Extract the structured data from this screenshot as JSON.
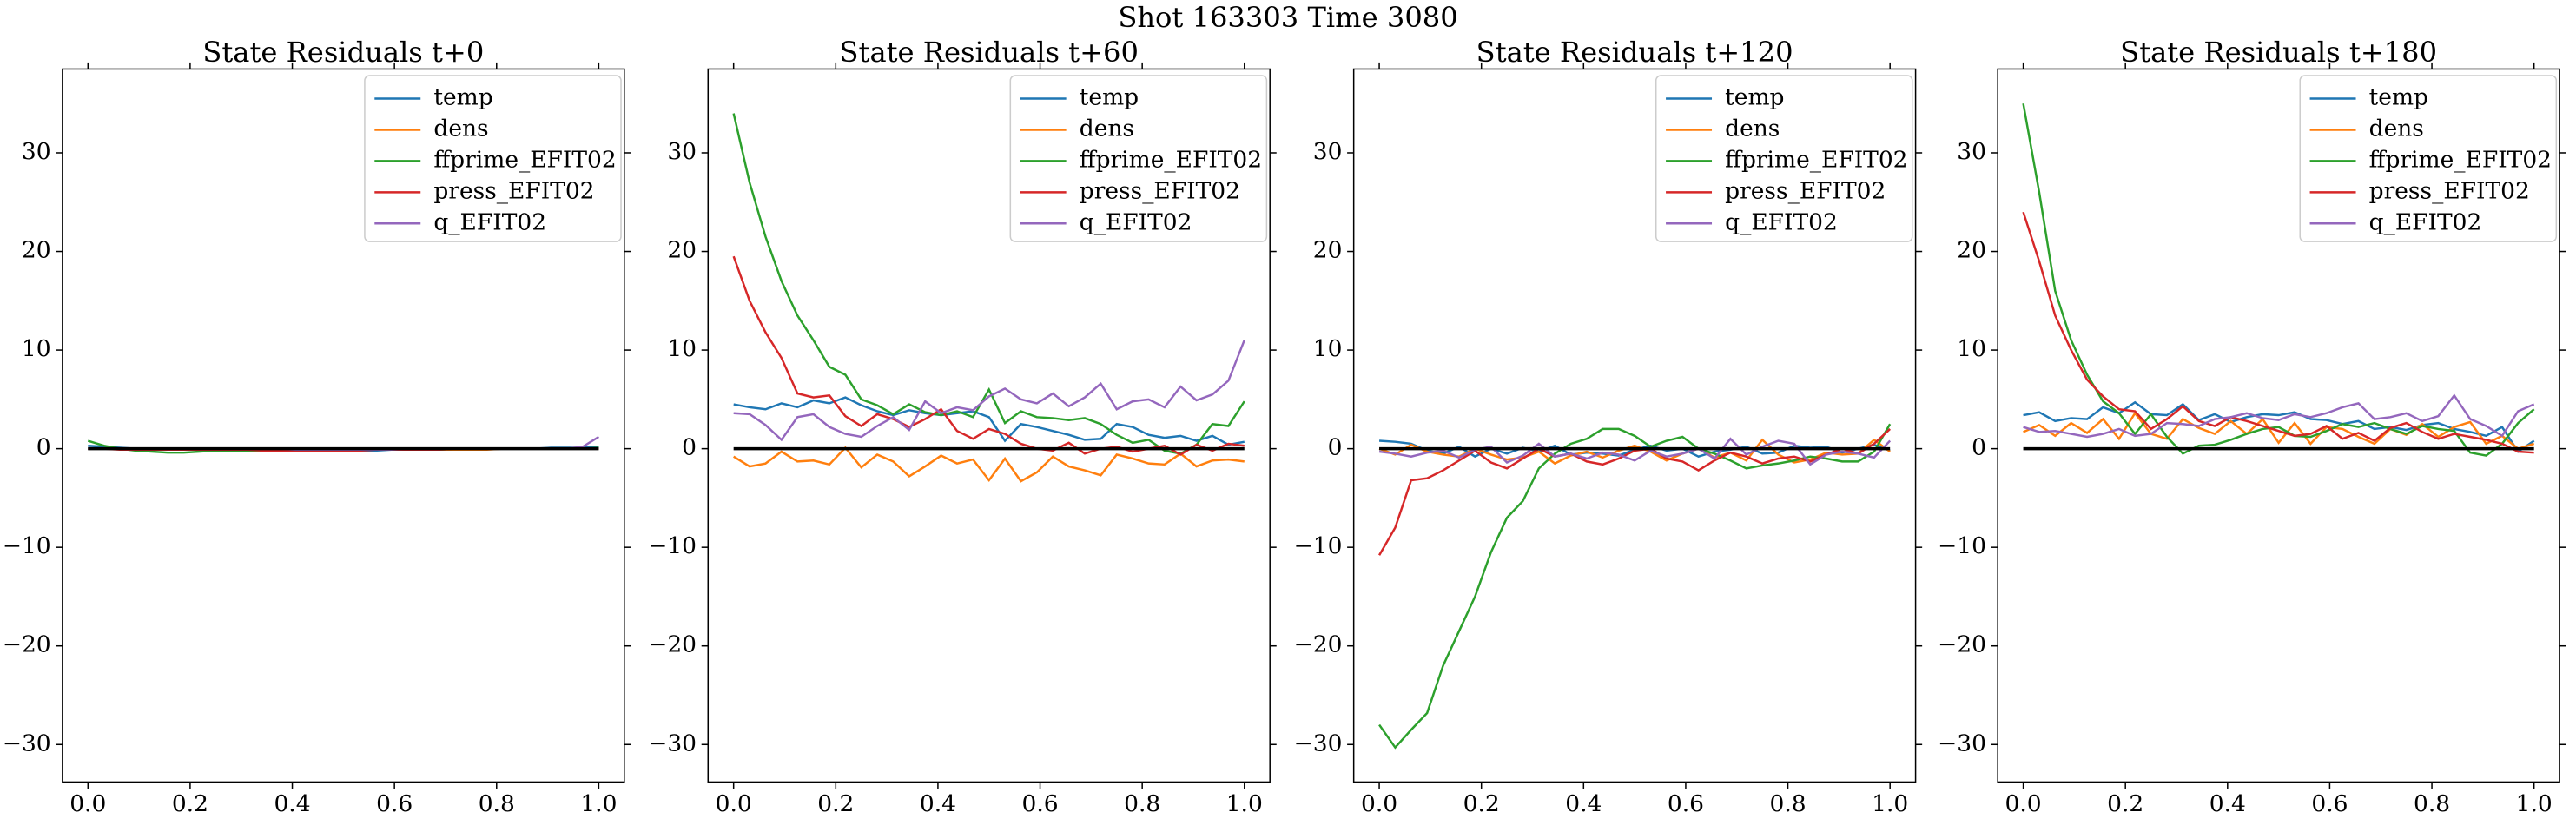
{
  "title": "Shot 163303   Time 3080",
  "chart_data": [
    {
      "type": "line",
      "title": "State Residuals t+0",
      "x": [
        0,
        0.03125,
        0.0625,
        0.09375,
        0.125,
        0.15625,
        0.1875,
        0.21875,
        0.25,
        0.28125,
        0.3125,
        0.34375,
        0.375,
        0.40625,
        0.4375,
        0.46875,
        0.5,
        0.53125,
        0.5625,
        0.59375,
        0.625,
        0.65625,
        0.6875,
        0.71875,
        0.75,
        0.78125,
        0.8125,
        0.84375,
        0.875,
        0.90625,
        0.9375,
        0.96875,
        1
      ],
      "series": [
        {
          "name": "temp",
          "color": "#1f77b4",
          "values": [
            0.3,
            0.2,
            0.1,
            0,
            0,
            0,
            -0.1,
            -0.1,
            -0.1,
            -0.1,
            -0.1,
            -0.1,
            -0.2,
            -0.2,
            -0.2,
            -0.2,
            -0.2,
            -0.2,
            -0.2,
            -0.1,
            -0.1,
            -0.1,
            -0.1,
            0,
            0,
            0,
            0,
            0,
            0,
            0.1,
            0.1,
            0.1,
            0.2
          ]
        },
        {
          "name": "dens",
          "color": "#ff7f0e",
          "values": [
            0,
            0,
            0,
            -0.1,
            -0.1,
            -0.1,
            -0.1,
            -0.1,
            -0.1,
            -0.1,
            -0.1,
            -0.1,
            -0.1,
            -0.1,
            -0.1,
            -0.1,
            -0.1,
            -0.1,
            -0.1,
            -0.1,
            -0.1,
            -0.1,
            -0.1,
            -0.1,
            -0.1,
            -0.1,
            0,
            0,
            0,
            0,
            0,
            0,
            0
          ]
        },
        {
          "name": "ffprime_EFIT02",
          "color": "#2ca02c",
          "values": [
            0.8,
            0.3,
            0,
            -0.2,
            -0.3,
            -0.4,
            -0.4,
            -0.3,
            -0.2,
            -0.2,
            -0.2,
            -0.2,
            -0.2,
            -0.2,
            -0.2,
            -0.2,
            -0.2,
            -0.1,
            -0.1,
            -0.1,
            -0.1,
            -0.1,
            -0.1,
            0,
            0,
            0,
            0,
            0,
            0,
            0,
            0,
            0,
            0.1
          ]
        },
        {
          "name": "press_EFIT02",
          "color": "#d62728",
          "values": [
            0,
            0,
            -0.1,
            -0.1,
            -0.1,
            -0.1,
            -0.1,
            -0.1,
            -0.1,
            -0.1,
            -0.1,
            -0.2,
            -0.2,
            -0.2,
            -0.2,
            -0.2,
            -0.2,
            -0.2,
            -0.1,
            -0.1,
            -0.1,
            -0.1,
            -0.1,
            0,
            0,
            0,
            0,
            0,
            0,
            0,
            0,
            0,
            0
          ]
        },
        {
          "name": "q_EFIT02",
          "color": "#9467bd",
          "values": [
            0,
            0,
            0,
            0,
            0,
            0,
            0,
            0,
            0,
            0,
            0,
            0,
            0,
            -0.1,
            -0.1,
            -0.1,
            -0.1,
            -0.1,
            -0.1,
            -0.1,
            0,
            0,
            0,
            0,
            0,
            0,
            0,
            0,
            0,
            0,
            0,
            0.2,
            1.2
          ]
        }
      ],
      "hline": 0,
      "hline_color": "#000000",
      "xlim": [
        -0.05,
        1.05
      ],
      "ylim": [
        -33.8,
        38.5
      ],
      "xticks": [
        {
          "value": 0,
          "label": "0.0"
        },
        {
          "value": 0.2,
          "label": "0.2"
        },
        {
          "value": 0.4,
          "label": "0.4"
        },
        {
          "value": 0.6,
          "label": "0.6"
        },
        {
          "value": 0.8,
          "label": "0.8"
        },
        {
          "value": 1,
          "label": "1.0"
        }
      ],
      "yticks": [
        {
          "value": -30,
          "label": "−30"
        },
        {
          "value": -20,
          "label": "−20"
        },
        {
          "value": -10,
          "label": "−10"
        },
        0,
        10,
        20,
        30
      ],
      "legend": "upper right"
    },
    {
      "type": "line",
      "title": "State Residuals t+60",
      "x": [
        0,
        0.03125,
        0.0625,
        0.09375,
        0.125,
        0.15625,
        0.1875,
        0.21875,
        0.25,
        0.28125,
        0.3125,
        0.34375,
        0.375,
        0.40625,
        0.4375,
        0.46875,
        0.5,
        0.53125,
        0.5625,
        0.59375,
        0.625,
        0.65625,
        0.6875,
        0.71875,
        0.75,
        0.78125,
        0.8125,
        0.84375,
        0.875,
        0.90625,
        0.9375,
        0.96875,
        1
      ],
      "series": [
        {
          "name": "temp",
          "color": "#1f77b4",
          "values": [
            4.5,
            4.2,
            4.0,
            4.6,
            4.2,
            4.9,
            4.6,
            5.2,
            4.4,
            3.8,
            3.4,
            3.9,
            3.6,
            3.4,
            3.6,
            3.8,
            3.2,
            0.8,
            2.5,
            2.2,
            1.8,
            1.4,
            0.9,
            1.0,
            2.5,
            2.2,
            1.4,
            1.1,
            1.3,
            0.8,
            1.3,
            0.4,
            0.7
          ]
        },
        {
          "name": "dens",
          "color": "#ff7f0e",
          "values": [
            -0.8,
            -1.8,
            -1.5,
            -0.3,
            -1.3,
            -1.2,
            -1.6,
            0.1,
            -1.9,
            -0.6,
            -1.3,
            -2.8,
            -1.8,
            -0.7,
            -1.5,
            -1.1,
            -3.2,
            -1.0,
            -3.3,
            -2.4,
            -0.8,
            -1.8,
            -2.2,
            -2.7,
            -0.6,
            -1.0,
            -1.5,
            -1.6,
            -0.5,
            -1.8,
            -1.2,
            -1.1,
            -1.3
          ]
        },
        {
          "name": "ffprime_EFIT02",
          "color": "#2ca02c",
          "values": [
            34,
            27,
            21.5,
            17,
            13.5,
            11,
            8.3,
            7.5,
            5,
            4.4,
            3.5,
            4.5,
            3.7,
            3.4,
            3.8,
            3.2,
            6.0,
            2.6,
            3.8,
            3.2,
            3.1,
            2.9,
            3.1,
            2.5,
            1.4,
            0.6,
            0.9,
            -0.2,
            -0.5,
            0.4,
            2.5,
            2.3,
            4.8
          ]
        },
        {
          "name": "press_EFIT02",
          "color": "#d62728",
          "values": [
            19.5,
            15,
            11.8,
            9.2,
            5.6,
            5.2,
            5.4,
            3.3,
            2.3,
            3.5,
            3.0,
            2.2,
            3.0,
            4.0,
            1.8,
            1.0,
            2.0,
            1.5,
            0.5,
            0.0,
            -0.2,
            0.6,
            -0.5,
            0.0,
            0.2,
            -0.3,
            0.0,
            0.3,
            -0.6,
            0.4,
            -0.2,
            0.5,
            0.3
          ]
        },
        {
          "name": "q_EFIT02",
          "color": "#9467bd",
          "values": [
            3.6,
            3.5,
            2.4,
            0.9,
            3.2,
            3.5,
            2.2,
            1.5,
            1.2,
            2.3,
            3.2,
            1.9,
            4.8,
            3.6,
            4.2,
            3.9,
            5.3,
            6.1,
            5.0,
            4.6,
            5.6,
            4.3,
            5.2,
            6.6,
            4.0,
            4.8,
            5.0,
            4.2,
            6.3,
            4.9,
            5.5,
            6.9,
            11.0
          ]
        }
      ],
      "hline": 0,
      "hline_color": "#000000",
      "xlim": [
        -0.05,
        1.05
      ],
      "ylim": [
        -33.8,
        38.5
      ],
      "xticks": [
        {
          "value": 0,
          "label": "0.0"
        },
        {
          "value": 0.2,
          "label": "0.2"
        },
        {
          "value": 0.4,
          "label": "0.4"
        },
        {
          "value": 0.6,
          "label": "0.6"
        },
        {
          "value": 0.8,
          "label": "0.8"
        },
        {
          "value": 1,
          "label": "1.0"
        }
      ],
      "yticks": [
        {
          "value": -30,
          "label": "−30"
        },
        {
          "value": -20,
          "label": "−20"
        },
        {
          "value": -10,
          "label": "−10"
        },
        0,
        10,
        20,
        30
      ],
      "legend": "upper right"
    },
    {
      "type": "line",
      "title": "State Residuals t+120",
      "x": [
        0,
        0.03125,
        0.0625,
        0.09375,
        0.125,
        0.15625,
        0.1875,
        0.21875,
        0.25,
        0.28125,
        0.3125,
        0.34375,
        0.375,
        0.40625,
        0.4375,
        0.46875,
        0.5,
        0.53125,
        0.5625,
        0.59375,
        0.625,
        0.65625,
        0.6875,
        0.71875,
        0.75,
        0.78125,
        0.8125,
        0.84375,
        0.875,
        0.90625,
        0.9375,
        0.96875,
        1
      ],
      "series": [
        {
          "name": "temp",
          "color": "#1f77b4",
          "values": [
            0.8,
            0.7,
            0.5,
            -0.2,
            -0.5,
            0.2,
            -0.8,
            0.0,
            -0.5,
            0.1,
            -0.3,
            0.3,
            -0.6,
            -0.4,
            -0.5,
            -0.7,
            -0.1,
            0.3,
            -0.2,
            0.0,
            -0.8,
            -0.3,
            -0.1,
            0.2,
            -0.5,
            -0.4,
            0.3,
            0.1,
            0.2,
            -0.4,
            0.0,
            0.4,
            -0.2
          ]
        },
        {
          "name": "dens",
          "color": "#ff7f0e",
          "values": [
            0.0,
            -0.6,
            0.4,
            -0.3,
            -0.6,
            -0.8,
            0.0,
            -0.6,
            -1.1,
            -0.9,
            -0.3,
            -1.5,
            -0.7,
            -0.3,
            -0.9,
            -0.2,
            0.3,
            -0.3,
            -1.2,
            -0.5,
            0.0,
            -0.9,
            -0.4,
            -1.2,
            0.9,
            -0.6,
            -1.4,
            -1.1,
            -0.4,
            -0.6,
            -0.5,
            0.9,
            -0.3
          ]
        },
        {
          "name": "ffprime_EFIT02",
          "color": "#2ca02c",
          "values": [
            -28,
            -30.3,
            -28.5,
            -26.8,
            -22,
            -18.5,
            -15,
            -10.5,
            -7,
            -5.3,
            -2,
            -0.5,
            0.5,
            1.0,
            2.0,
            2.0,
            1.3,
            0.2,
            0.8,
            1.2,
            0.0,
            -0.5,
            -1.2,
            -2.0,
            -1.7,
            -1.5,
            -1.2,
            -0.8,
            -1.0,
            -1.3,
            -1.3,
            -0.3,
            2.5
          ]
        },
        {
          "name": "press_EFIT02",
          "color": "#d62728",
          "values": [
            -10.8,
            -8,
            -3.2,
            -3.0,
            -2.2,
            -1.2,
            -0.2,
            -1.4,
            -2.0,
            -1.0,
            0.0,
            -0.8,
            -0.5,
            -1.3,
            -1.6,
            -1.0,
            -0.2,
            0.0,
            -1.0,
            -1.3,
            -2.2,
            -1.2,
            -0.4,
            -0.8,
            -1.5,
            -1.0,
            -0.8,
            -1.3,
            -0.6,
            0.0,
            -0.5,
            0.5,
            2.0
          ]
        },
        {
          "name": "q_EFIT02",
          "color": "#9467bd",
          "values": [
            -0.3,
            -0.5,
            -0.8,
            -0.4,
            -0.2,
            -0.9,
            -0.1,
            0.2,
            -1.4,
            -0.7,
            0.5,
            -0.8,
            -0.5,
            -1.0,
            -0.4,
            -0.6,
            -1.2,
            -0.2,
            -0.8,
            -0.5,
            0.0,
            -1.0,
            1.0,
            -0.6,
            0.2,
            0.8,
            0.5,
            -1.6,
            -0.6,
            -0.3,
            -0.5,
            -0.9,
            0.8
          ]
        }
      ],
      "hline": 0,
      "hline_color": "#000000",
      "xlim": [
        -0.05,
        1.05
      ],
      "ylim": [
        -33.8,
        38.5
      ],
      "xticks": [
        {
          "value": 0,
          "label": "0.0"
        },
        {
          "value": 0.2,
          "label": "0.2"
        },
        {
          "value": 0.4,
          "label": "0.4"
        },
        {
          "value": 0.6,
          "label": "0.6"
        },
        {
          "value": 0.8,
          "label": "0.8"
        },
        {
          "value": 1,
          "label": "1.0"
        }
      ],
      "yticks": [
        {
          "value": -30,
          "label": "−30"
        },
        {
          "value": -20,
          "label": "−20"
        },
        {
          "value": -10,
          "label": "−10"
        },
        0,
        10,
        20,
        30
      ],
      "legend": "upper right"
    },
    {
      "type": "line",
      "title": "State Residuals t+180",
      "x": [
        0,
        0.03125,
        0.0625,
        0.09375,
        0.125,
        0.15625,
        0.1875,
        0.21875,
        0.25,
        0.28125,
        0.3125,
        0.34375,
        0.375,
        0.40625,
        0.4375,
        0.46875,
        0.5,
        0.53125,
        0.5625,
        0.59375,
        0.625,
        0.65625,
        0.6875,
        0.71875,
        0.75,
        0.78125,
        0.8125,
        0.84375,
        0.875,
        0.90625,
        0.9375,
        0.96875,
        1
      ],
      "series": [
        {
          "name": "temp",
          "color": "#1f77b4",
          "values": [
            3.4,
            3.7,
            2.8,
            3.1,
            3.0,
            4.2,
            3.6,
            4.7,
            3.5,
            3.4,
            4.5,
            2.9,
            3.5,
            2.7,
            3.2,
            3.5,
            3.4,
            3.7,
            3.0,
            2.9,
            2.5,
            2.8,
            2.0,
            2.2,
            1.9,
            2.4,
            2.6,
            2.0,
            1.7,
            1.3,
            2.2,
            -0.3,
            0.8
          ]
        },
        {
          "name": "dens",
          "color": "#ff7f0e",
          "values": [
            1.7,
            2.4,
            1.3,
            2.6,
            1.6,
            3.0,
            1.0,
            3.6,
            1.5,
            1.0,
            3.0,
            2.1,
            1.5,
            2.8,
            1.5,
            3.0,
            0.6,
            2.6,
            0.5,
            2.2,
            2.0,
            1.2,
            0.5,
            2.0,
            1.4,
            2.5,
            1.2,
            2.2,
            2.7,
            0.5,
            1.3,
            0.0,
            0.5
          ]
        },
        {
          "name": "ffprime_EFIT02",
          "color": "#2ca02c",
          "values": [
            35,
            26,
            16,
            11,
            7.5,
            4.8,
            3.6,
            1.5,
            3.5,
            1.2,
            -0.5,
            0.3,
            0.4,
            0.9,
            1.5,
            2.0,
            2.2,
            1.3,
            1.2,
            1.8,
            2.5,
            2.2,
            2.6,
            2.0,
            1.5,
            2.3,
            2.0,
            1.8,
            -0.4,
            -0.7,
            0.5,
            2.6,
            4.0
          ]
        },
        {
          "name": "press_EFIT02",
          "color": "#d62728",
          "values": [
            24,
            19,
            13.5,
            10,
            7,
            5.3,
            4.0,
            3.8,
            2.0,
            3.0,
            4.3,
            2.8,
            2.3,
            3.2,
            2.8,
            2.3,
            1.8,
            1.3,
            1.5,
            2.3,
            1.0,
            1.6,
            0.8,
            2.1,
            2.6,
            1.7,
            1.0,
            1.5,
            1.2,
            0.9,
            0.5,
            -0.3,
            -0.4
          ]
        },
        {
          "name": "q_EFIT02",
          "color": "#9467bd",
          "values": [
            2.2,
            1.7,
            1.8,
            1.5,
            1.2,
            1.5,
            2.0,
            1.3,
            1.5,
            2.6,
            2.5,
            2.3,
            3.0,
            3.2,
            3.6,
            3.1,
            2.9,
            3.5,
            3.2,
            3.6,
            4.2,
            4.6,
            3.0,
            3.2,
            3.6,
            2.8,
            3.3,
            5.4,
            3.0,
            2.3,
            1.3,
            3.8,
            4.5
          ]
        }
      ],
      "hline": 0,
      "hline_color": "#000000",
      "xlim": [
        -0.05,
        1.05
      ],
      "ylim": [
        -33.8,
        38.5
      ],
      "xticks": [
        {
          "value": 0,
          "label": "0.0"
        },
        {
          "value": 0.2,
          "label": "0.2"
        },
        {
          "value": 0.4,
          "label": "0.4"
        },
        {
          "value": 0.6,
          "label": "0.6"
        },
        {
          "value": 0.8,
          "label": "0.8"
        },
        {
          "value": 1,
          "label": "1.0"
        }
      ],
      "yticks": [
        {
          "value": -30,
          "label": "−30"
        },
        {
          "value": -20,
          "label": "−20"
        },
        {
          "value": -10,
          "label": "−10"
        },
        0,
        10,
        20,
        30
      ],
      "legend": "upper right"
    }
  ]
}
